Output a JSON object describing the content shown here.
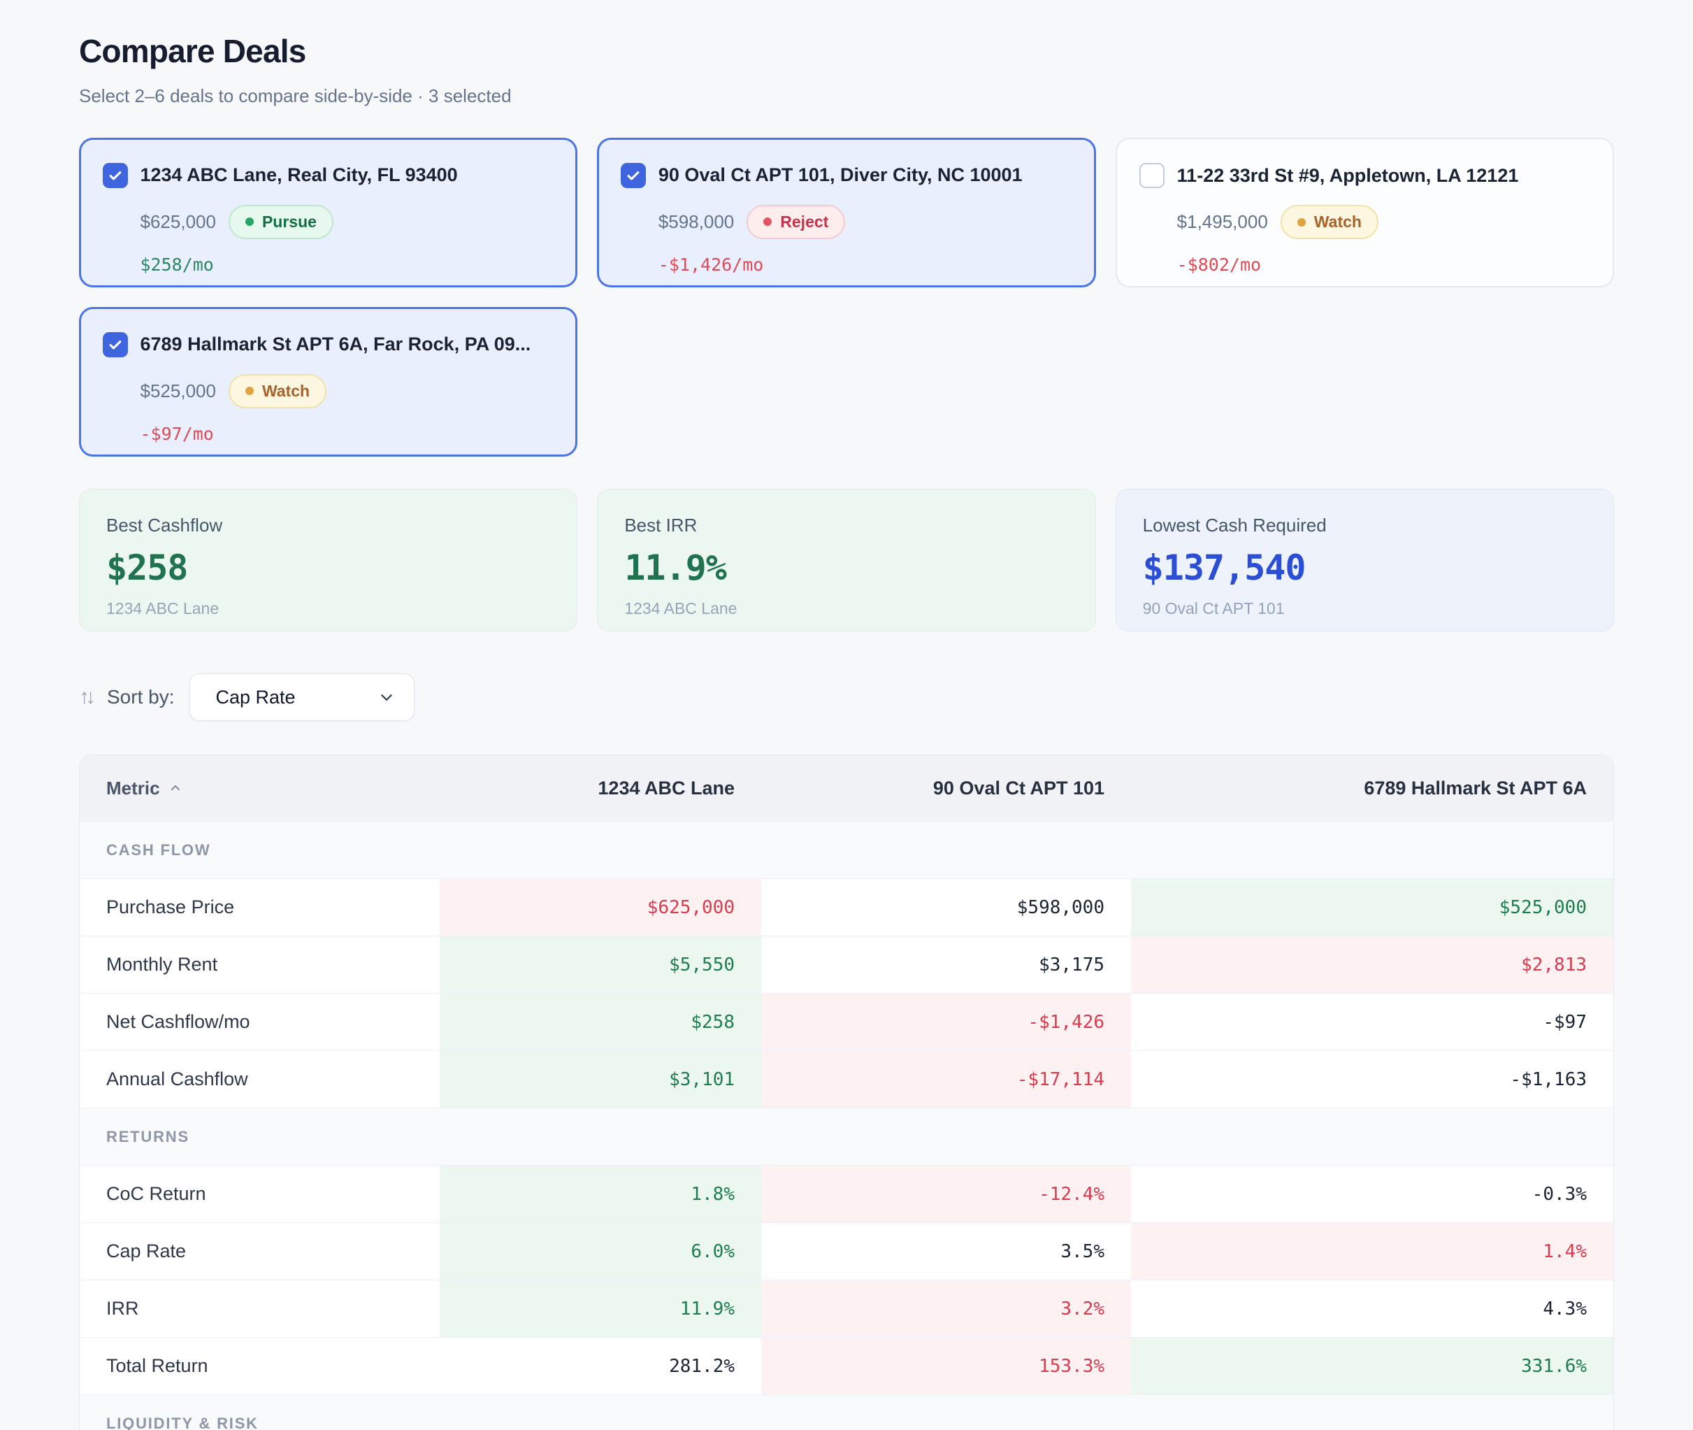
{
  "page": {
    "title": "Compare Deals",
    "subtitle": "Select 2–6 deals to compare side-by-side · 3 selected"
  },
  "colors": {
    "accent_blue": "#4b74e6",
    "checkbox_blue": "#3e64de",
    "positive_green": "#1e7d4f",
    "negative_red": "#d93b4f",
    "watch_amber": "#a8622a",
    "best_cell_bg": "#ecf7f0",
    "worst_cell_bg": "#fdf1f2",
    "summary_blue_value": "#2b4ed4"
  },
  "deals": [
    {
      "address": "1234 ABC Lane, Real City, FL 93400",
      "price": "$625,000",
      "status": "Pursue",
      "status_type": "pursue",
      "cashflow": "$258/mo",
      "cashflow_positive": true,
      "selected": true
    },
    {
      "address": "90 Oval Ct APT 101, Diver City, NC 10001",
      "price": "$598,000",
      "status": "Reject",
      "status_type": "reject",
      "cashflow": "-$1,426/mo",
      "cashflow_positive": false,
      "selected": true
    },
    {
      "address": "11-22 33rd St #9, Appletown, LA 12121",
      "price": "$1,495,000",
      "status": "Watch",
      "status_type": "watch",
      "cashflow": "-$802/mo",
      "cashflow_positive": false,
      "selected": false
    },
    {
      "address": "6789 Hallmark St APT 6A, Far Rock, PA 09...",
      "price": "$525,000",
      "status": "Watch",
      "status_type": "watch",
      "cashflow": "-$97/mo",
      "cashflow_positive": false,
      "selected": true
    }
  ],
  "summary_cards": [
    {
      "label": "Best Cashflow",
      "value": "$258",
      "property": "1234 ABC Lane",
      "theme": "green"
    },
    {
      "label": "Best IRR",
      "value": "11.9%",
      "property": "1234 ABC Lane",
      "theme": "green"
    },
    {
      "label": "Lowest Cash Required",
      "value": "$137,540",
      "property": "90 Oval Ct APT 101",
      "theme": "blue"
    }
  ],
  "sort": {
    "label": "Sort by:",
    "selected": "Cap Rate"
  },
  "table": {
    "metric_header": "Metric",
    "columns": [
      "1234 ABC Lane",
      "90 Oval Ct APT 101",
      "6789 Hallmark St APT 6A"
    ],
    "sections": [
      {
        "title": "CASH FLOW",
        "rows": [
          {
            "metric": "Purchase Price",
            "values": [
              {
                "text": "$625,000",
                "state": "worst"
              },
              {
                "text": "$598,000",
                "state": "neutral"
              },
              {
                "text": "$525,000",
                "state": "best"
              }
            ]
          },
          {
            "metric": "Monthly Rent",
            "values": [
              {
                "text": "$5,550",
                "state": "best"
              },
              {
                "text": "$3,175",
                "state": "neutral"
              },
              {
                "text": "$2,813",
                "state": "worst"
              }
            ]
          },
          {
            "metric": "Net Cashflow/mo",
            "values": [
              {
                "text": "$258",
                "state": "best"
              },
              {
                "text": "-$1,426",
                "state": "worst"
              },
              {
                "text": "-$97",
                "state": "neutral"
              }
            ]
          },
          {
            "metric": "Annual Cashflow",
            "values": [
              {
                "text": "$3,101",
                "state": "best"
              },
              {
                "text": "-$17,114",
                "state": "worst"
              },
              {
                "text": "-$1,163",
                "state": "neutral"
              }
            ]
          }
        ]
      },
      {
        "title": "RETURNS",
        "rows": [
          {
            "metric": "CoC Return",
            "values": [
              {
                "text": "1.8%",
                "state": "best"
              },
              {
                "text": "-12.4%",
                "state": "worst"
              },
              {
                "text": "-0.3%",
                "state": "neutral"
              }
            ]
          },
          {
            "metric": "Cap Rate",
            "values": [
              {
                "text": "6.0%",
                "state": "best"
              },
              {
                "text": "3.5%",
                "state": "neutral"
              },
              {
                "text": "1.4%",
                "state": "worst"
              }
            ]
          },
          {
            "metric": "IRR",
            "values": [
              {
                "text": "11.9%",
                "state": "best"
              },
              {
                "text": "3.2%",
                "state": "worst"
              },
              {
                "text": "4.3%",
                "state": "neutral"
              }
            ]
          },
          {
            "metric": "Total Return",
            "values": [
              {
                "text": "281.2%",
                "state": "neutral"
              },
              {
                "text": "153.3%",
                "state": "worst"
              },
              {
                "text": "331.6%",
                "state": "best"
              }
            ]
          }
        ]
      },
      {
        "title": "LIQUIDITY & RISK",
        "rows": []
      }
    ]
  }
}
